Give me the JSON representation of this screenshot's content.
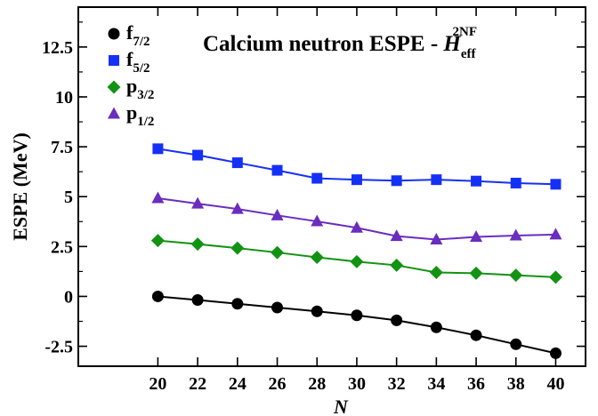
{
  "chart_data": {
    "type": "line",
    "title_main": "Calcium neutron ESPE - ",
    "title_symbol": "H",
    "title_sub": "eff",
    "title_sup": "2NF",
    "xlabel": "N",
    "ylabel": "ESPE (MeV)",
    "xlim": [
      16,
      41.5
    ],
    "ylim": [
      -3.5,
      14.5
    ],
    "xticks": [
      20,
      22,
      24,
      26,
      28,
      30,
      32,
      34,
      36,
      38,
      40
    ],
    "yticks": [
      -2.5,
      0,
      2.5,
      5,
      7.5,
      10,
      12.5
    ],
    "ytick_labels": [
      "-2.5",
      "0",
      "2.5",
      "5",
      "7.5",
      "10",
      "12.5"
    ],
    "x": [
      20,
      22,
      24,
      26,
      28,
      30,
      32,
      34,
      36,
      38,
      40
    ],
    "legend_position": "top-left",
    "series": [
      {
        "name": "f",
        "name_sub": "7/2",
        "marker": "circle",
        "color": "#000000",
        "values": [
          0.0,
          -0.18,
          -0.37,
          -0.56,
          -0.75,
          -0.95,
          -1.2,
          -1.55,
          -1.95,
          -2.4,
          -2.85
        ]
      },
      {
        "name": "f",
        "name_sub": "5/2",
        "marker": "square",
        "color": "#1530f5",
        "values": [
          7.4,
          7.08,
          6.7,
          6.32,
          5.92,
          5.85,
          5.8,
          5.85,
          5.78,
          5.68,
          5.62
        ]
      },
      {
        "name": "p",
        "name_sub": "3/2",
        "marker": "diamond",
        "color": "#139313",
        "values": [
          2.8,
          2.62,
          2.42,
          2.2,
          1.96,
          1.74,
          1.56,
          1.2,
          1.16,
          1.06,
          0.96
        ]
      },
      {
        "name": "p",
        "name_sub": "1/2",
        "marker": "triangle",
        "color": "#6a2dbd",
        "values": [
          4.92,
          4.65,
          4.38,
          4.06,
          3.76,
          3.44,
          3.02,
          2.85,
          2.98,
          3.05,
          3.1
        ]
      }
    ]
  }
}
